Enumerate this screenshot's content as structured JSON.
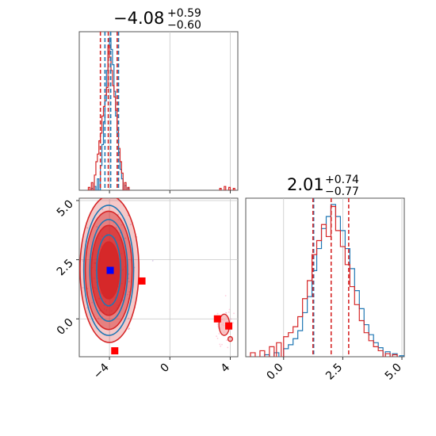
{
  "chart_data": [
    {
      "type": "histogram",
      "panel": "marginal-x",
      "title": {
        "base": "−4.08",
        "sup": "+0.59",
        "sub": "−0.60"
      },
      "xlim": [
        -6,
        4.5
      ],
      "grid": true,
      "quantile_lines": {
        "red": [
          -4.6,
          -4.08,
          -3.49
        ],
        "blue": [
          -4.3,
          -3.92,
          -3.4
        ]
      },
      "series": [
        {
          "color": "#1f77b4",
          "bins": [
            [
              -5.2,
              2
            ],
            [
              -5.0,
              4
            ],
            [
              -4.8,
              12
            ],
            [
              -4.6,
              26
            ],
            [
              -4.5,
              48
            ],
            [
              -4.4,
              72
            ],
            [
              -4.3,
              94
            ],
            [
              -4.2,
              126
            ],
            [
              -4.1,
              152
            ],
            [
              -4.0,
              160
            ],
            [
              -3.9,
              148
            ],
            [
              -3.8,
              132
            ],
            [
              -3.7,
              104
            ],
            [
              -3.6,
              78
            ],
            [
              -3.5,
              60
            ],
            [
              -3.4,
              40
            ],
            [
              -3.3,
              22
            ],
            [
              -3.2,
              12
            ],
            [
              -3.0,
              5
            ],
            [
              -2.8,
              2
            ]
          ]
        },
        {
          "color": "#d62728",
          "bins": [
            [
              -5.4,
              3
            ],
            [
              -5.2,
              8
            ],
            [
              -5.0,
              16
            ],
            [
              -4.9,
              30
            ],
            [
              -4.8,
              38
            ],
            [
              -4.7,
              52
            ],
            [
              -4.6,
              60
            ],
            [
              -4.5,
              78
            ],
            [
              -4.4,
              88
            ],
            [
              -4.3,
              100
            ],
            [
              -4.2,
              108
            ],
            [
              -4.1,
              152
            ],
            [
              -4.0,
              140
            ],
            [
              -3.9,
              126
            ],
            [
              -3.8,
              110
            ],
            [
              -3.7,
              98
            ],
            [
              -3.6,
              84
            ],
            [
              -3.5,
              64
            ],
            [
              -3.4,
              44
            ],
            [
              -3.3,
              30
            ],
            [
              -3.2,
              18
            ],
            [
              -3.0,
              8
            ],
            [
              -2.8,
              3
            ],
            [
              3.3,
              2
            ],
            [
              3.6,
              4
            ],
            [
              3.9,
              3
            ],
            [
              4.2,
              2
            ]
          ]
        }
      ]
    },
    {
      "type": "contour-scatter",
      "panel": "joint",
      "xlim": [
        -6,
        4.5
      ],
      "ylim": [
        -1.6,
        5.1
      ],
      "x_ticks": [
        "−4",
        "0",
        "4"
      ],
      "x_tick_values": [
        -4,
        0,
        4
      ],
      "y_ticks": [
        "0.0",
        "2.5",
        "5.0"
      ],
      "y_tick_values": [
        0,
        2.5,
        5
      ],
      "grid": true,
      "contours": {
        "red": [
          {
            "cx": -4.0,
            "cy": 2.1,
            "rx": 1.95,
            "ry": 3.1
          },
          {
            "cx": -4.05,
            "cy": 2.05,
            "rx": 1.55,
            "ry": 2.5
          },
          {
            "cx": -4.05,
            "cy": 2.05,
            "rx": 1.15,
            "ry": 1.9
          },
          {
            "cx": -4.05,
            "cy": 2.05,
            "rx": 0.7,
            "ry": 1.2
          }
        ],
        "blue": [
          {
            "cx": -4.05,
            "cy": 2.05,
            "rx": 1.65,
            "ry": 2.75
          },
          {
            "cx": -4.05,
            "cy": 2.05,
            "rx": 1.25,
            "ry": 2.15
          },
          {
            "cx": -4.05,
            "cy": 2.05,
            "rx": 0.8,
            "ry": 1.5
          }
        ]
      },
      "outlier_cluster_red": [
        {
          "cx": 3.6,
          "cy": -0.25,
          "rx": 0.35,
          "ry": 0.45
        },
        {
          "cx": 4.0,
          "cy": -0.85,
          "rx": 0.15,
          "ry": 0.1
        }
      ],
      "markers_red": [
        [
          -1.85,
          1.6
        ],
        [
          -3.65,
          -1.35
        ],
        [
          3.15,
          0.0
        ],
        [
          3.9,
          -0.3
        ]
      ],
      "markers_blue": [
        [
          -3.95,
          2.05
        ]
      ]
    },
    {
      "type": "histogram",
      "panel": "marginal-y",
      "title": {
        "base": "2.01",
        "sup": "+0.74",
        "sub": "−0.77"
      },
      "xlim": [
        -1.6,
        5.1
      ],
      "x_ticks": [
        "0.0",
        "2.5",
        "5.0"
      ],
      "x_tick_values": [
        0,
        2.5,
        5
      ],
      "grid": true,
      "quantile_lines": {
        "red": [
          1.24,
          2.01,
          2.75
        ],
        "blue": [
          1.27
        ]
      },
      "series": [
        {
          "color": "#1f77b4",
          "bins": [
            [
              -0.8,
              2
            ],
            [
              -0.4,
              4
            ],
            [
              0.0,
              8
            ],
            [
              0.2,
              12
            ],
            [
              0.4,
              18
            ],
            [
              0.6,
              26
            ],
            [
              0.8,
              44
            ],
            [
              1.0,
              60
            ],
            [
              1.2,
              86
            ],
            [
              1.4,
              108
            ],
            [
              1.6,
              128
            ],
            [
              1.8,
              140
            ],
            [
              2.0,
              152
            ],
            [
              2.2,
              140
            ],
            [
              2.4,
              126
            ],
            [
              2.6,
              108
            ],
            [
              2.8,
              88
            ],
            [
              3.0,
              66
            ],
            [
              3.2,
              48
            ],
            [
              3.4,
              32
            ],
            [
              3.6,
              22
            ],
            [
              3.8,
              14
            ],
            [
              4.0,
              9
            ],
            [
              4.3,
              5
            ],
            [
              4.6,
              3
            ],
            [
              4.9,
              1
            ]
          ]
        },
        {
          "color": "#d62728",
          "bins": [
            [
              -1.4,
              4
            ],
            [
              -1.0,
              6
            ],
            [
              -0.6,
              10
            ],
            [
              -0.3,
              14
            ],
            [
              0.0,
              20
            ],
            [
              0.2,
              24
            ],
            [
              0.4,
              30
            ],
            [
              0.6,
              40
            ],
            [
              0.8,
              58
            ],
            [
              1.0,
              76
            ],
            [
              1.2,
              102
            ],
            [
              1.4,
              116
            ],
            [
              1.6,
              132
            ],
            [
              1.8,
              120
            ],
            [
              2.0,
              150
            ],
            [
              2.2,
              126
            ],
            [
              2.4,
              110
            ],
            [
              2.6,
              92
            ],
            [
              2.8,
              70
            ],
            [
              3.0,
              52
            ],
            [
              3.2,
              36
            ],
            [
              3.4,
              24
            ],
            [
              3.6,
              16
            ],
            [
              3.8,
              10
            ],
            [
              4.0,
              6
            ],
            [
              4.3,
              3
            ],
            [
              4.6,
              2
            ]
          ]
        }
      ]
    }
  ]
}
